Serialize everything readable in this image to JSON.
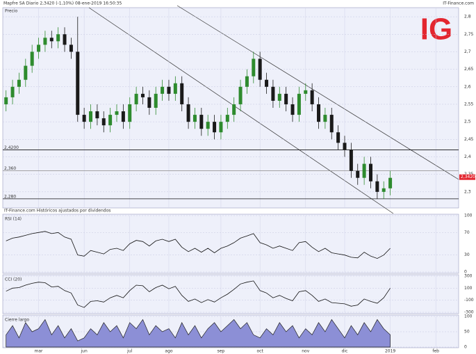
{
  "header": {
    "title": "Mapfre SA  Diario  2,3420 (-1,10%)  08-ene-2019 16:50:35",
    "source": "IT-Finance.com",
    "logo": "IG",
    "note": "IT-Finance.com Históricos ajustados por dividendos"
  },
  "chart_data": [
    {
      "type": "candlestick",
      "title": "Precio",
      "categories": [
        null,
        null,
        null,
        null,
        null,
        "mar",
        null,
        null,
        null,
        null,
        null,
        null,
        "jun",
        null,
        null,
        null,
        null,
        null,
        null,
        "jul",
        null,
        null,
        null,
        null,
        null,
        "ago",
        null,
        null,
        null,
        null,
        null,
        null,
        null,
        "sep",
        null,
        null,
        null,
        null,
        null,
        "oct",
        null,
        null,
        null,
        null,
        null,
        null,
        "nov",
        null,
        null,
        null,
        null,
        null,
        "dic",
        null,
        null,
        null,
        null,
        null,
        null,
        "2019",
        null,
        null,
        null,
        null,
        null,
        null,
        "feb",
        null,
        null,
        null
      ],
      "open": [
        2.55,
        2.57,
        2.6,
        2.62,
        2.66,
        2.7,
        2.72,
        2.74,
        2.73,
        2.75,
        2.72,
        2.7,
        2.52,
        2.5,
        2.53,
        2.51,
        2.49,
        2.52,
        2.53,
        2.5,
        2.55,
        2.58,
        2.57,
        2.54,
        2.58,
        2.6,
        2.58,
        2.61,
        2.55,
        2.5,
        2.52,
        2.48,
        2.5,
        2.47,
        2.5,
        2.52,
        2.55,
        2.6,
        2.63,
        2.68,
        2.62,
        2.6,
        2.56,
        2.58,
        2.55,
        2.52,
        2.58,
        2.59,
        2.55,
        2.5,
        2.52,
        2.47,
        2.44,
        2.42,
        2.36,
        2.34,
        2.38,
        2.33,
        2.3,
        2.31,
        null,
        null,
        null,
        null,
        null,
        null,
        null,
        null,
        null,
        null
      ],
      "high": [
        2.59,
        2.62,
        2.64,
        2.68,
        2.72,
        2.74,
        2.76,
        2.76,
        2.77,
        2.77,
        2.74,
        2.8,
        2.54,
        2.55,
        2.55,
        2.53,
        2.54,
        2.55,
        2.55,
        2.57,
        2.6,
        2.6,
        2.59,
        2.6,
        2.62,
        2.62,
        2.63,
        2.63,
        2.57,
        2.54,
        2.54,
        2.52,
        2.52,
        2.52,
        2.54,
        2.57,
        2.62,
        2.65,
        2.7,
        2.7,
        2.64,
        2.62,
        2.6,
        2.6,
        2.57,
        2.6,
        2.61,
        2.61,
        2.57,
        2.54,
        2.54,
        2.49,
        2.46,
        2.44,
        2.38,
        2.4,
        2.4,
        2.35,
        2.33,
        2.36,
        null,
        null,
        null,
        null,
        null,
        null,
        null,
        null,
        null,
        null
      ],
      "low": [
        2.53,
        2.55,
        2.58,
        2.6,
        2.64,
        2.68,
        2.7,
        2.71,
        2.71,
        2.7,
        2.68,
        2.5,
        2.48,
        2.48,
        2.49,
        2.47,
        2.47,
        2.5,
        2.48,
        2.48,
        2.53,
        2.55,
        2.52,
        2.52,
        2.56,
        2.56,
        2.56,
        2.53,
        2.48,
        2.48,
        2.46,
        2.46,
        2.45,
        2.45,
        2.48,
        2.5,
        2.53,
        2.58,
        2.61,
        2.6,
        2.58,
        2.54,
        2.54,
        2.53,
        2.5,
        2.5,
        2.56,
        2.53,
        2.48,
        2.48,
        2.45,
        2.42,
        2.4,
        2.34,
        2.32,
        2.32,
        2.31,
        2.28,
        2.28,
        2.29,
        null,
        null,
        null,
        null,
        null,
        null,
        null,
        null,
        null,
        null
      ],
      "close": [
        2.57,
        2.6,
        2.62,
        2.66,
        2.7,
        2.72,
        2.74,
        2.73,
        2.75,
        2.72,
        2.7,
        2.52,
        2.5,
        2.53,
        2.51,
        2.49,
        2.52,
        2.53,
        2.5,
        2.55,
        2.58,
        2.57,
        2.54,
        2.58,
        2.6,
        2.58,
        2.61,
        2.55,
        2.5,
        2.52,
        2.48,
        2.5,
        2.47,
        2.5,
        2.52,
        2.55,
        2.6,
        2.63,
        2.68,
        2.62,
        2.6,
        2.56,
        2.58,
        2.55,
        2.52,
        2.58,
        2.59,
        2.55,
        2.5,
        2.52,
        2.47,
        2.44,
        2.42,
        2.36,
        2.34,
        2.38,
        2.33,
        2.3,
        2.31,
        2.34,
        null,
        null,
        null,
        null,
        null,
        null,
        null,
        null,
        null,
        null
      ],
      "up_color": "#2e8b2e",
      "down_color": "#1a1a1a",
      "levels": [
        {
          "value": 2.42,
          "label": "2,4200"
        },
        {
          "value": 2.36,
          "label": "2,360"
        },
        {
          "value": 2.28,
          "label": "2,280"
        }
      ],
      "last": {
        "value": 2.342,
        "label": "2,3420"
      },
      "ylim": [
        2.254,
        2.826
      ],
      "yticks": [
        {
          "value": 2.3,
          "label": "2,3"
        },
        {
          "value": 2.35,
          "label": "2,35"
        },
        {
          "value": 2.4,
          "label": "2,4"
        },
        {
          "value": 2.45,
          "label": "2,45"
        },
        {
          "value": 2.5,
          "label": "2,5"
        },
        {
          "value": 2.55,
          "label": "2,55"
        },
        {
          "value": 2.6,
          "label": "2,6"
        },
        {
          "value": 2.65,
          "label": "2,65"
        },
        {
          "value": 2.7,
          "label": "2,7"
        },
        {
          "value": 2.75,
          "label": "2,75"
        },
        {
          "value": 2.8,
          "label": "2,8"
        }
      ]
    },
    {
      "type": "line",
      "title": "RSI (14)",
      "color": "#111111",
      "values": [
        55,
        60,
        62,
        65,
        68,
        70,
        72,
        68,
        70,
        62,
        58,
        30,
        28,
        38,
        35,
        32,
        40,
        42,
        38,
        50,
        56,
        54,
        46,
        55,
        58,
        54,
        58,
        44,
        36,
        42,
        35,
        42,
        34,
        42,
        46,
        52,
        60,
        64,
        68,
        52,
        48,
        42,
        46,
        42,
        38,
        52,
        54,
        44,
        36,
        42,
        34,
        32,
        30,
        26,
        25,
        35,
        28,
        24,
        30,
        42,
        null,
        null,
        null,
        null,
        null,
        null,
        null,
        null,
        null,
        null
      ],
      "ylim": [
        0,
        100
      ],
      "yticks": [
        100,
        70,
        30,
        0
      ]
    },
    {
      "type": "line",
      "title": "CCI (20)",
      "color": "#111111",
      "values": [
        50,
        100,
        110,
        150,
        180,
        200,
        190,
        120,
        130,
        60,
        20,
        -180,
        -220,
        -120,
        -110,
        -130,
        -60,
        -20,
        -60,
        60,
        150,
        140,
        40,
        110,
        150,
        90,
        130,
        -20,
        -120,
        -80,
        -140,
        -90,
        -130,
        -60,
        0,
        80,
        170,
        200,
        220,
        60,
        20,
        -60,
        -20,
        -70,
        -110,
        40,
        60,
        -20,
        -120,
        -80,
        -140,
        -150,
        -160,
        -200,
        -180,
        -80,
        -120,
        -150,
        -60,
        100,
        null,
        null,
        null,
        null,
        null,
        null,
        null,
        null,
        null,
        null
      ],
      "ylim": [
        -300,
        300
      ],
      "yticks": [
        300,
        100,
        -100,
        -300
      ]
    },
    {
      "type": "area",
      "title": "Cierre largo",
      "color": "#8c8fd6",
      "values": [
        40,
        70,
        30,
        80,
        50,
        60,
        90,
        40,
        70,
        30,
        60,
        20,
        30,
        60,
        40,
        80,
        50,
        70,
        30,
        80,
        60,
        90,
        40,
        70,
        50,
        60,
        30,
        80,
        40,
        70,
        30,
        60,
        80,
        50,
        70,
        90,
        60,
        80,
        40,
        30,
        60,
        40,
        80,
        50,
        70,
        30,
        60,
        40,
        80,
        50,
        90,
        60,
        30,
        70,
        40,
        80,
        50,
        90,
        60,
        40,
        null,
        null,
        null,
        null,
        null,
        null,
        null,
        null,
        null,
        null
      ],
      "ylim": [
        0,
        100
      ],
      "yticks": [
        100,
        50,
        0
      ]
    }
  ]
}
